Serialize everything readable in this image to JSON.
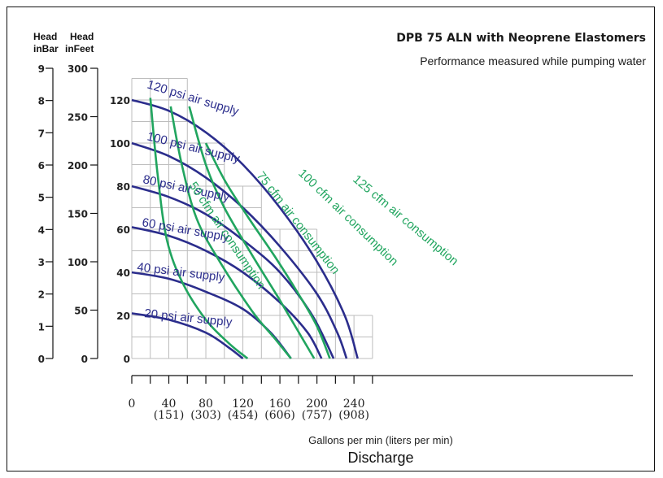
{
  "chart_data": {
    "type": "line",
    "title": "DPB 75 ALN with Neoprene  Elastomers",
    "subtitle": "Performance measured while pumping water",
    "xlabel": "Gallons per min (liters per min)",
    "xlabel2": "Discharge",
    "xlim": [
      0,
      260
    ],
    "ylim_feet": [
      0,
      300
    ],
    "x_ticks": [
      {
        "value": 0,
        "label": "0",
        "sub": ""
      },
      {
        "value": 40,
        "label": "40",
        "sub": "(151)"
      },
      {
        "value": 80,
        "label": "80",
        "sub": "(303)"
      },
      {
        "value": 120,
        "label": "120",
        "sub": "(454)"
      },
      {
        "value": 160,
        "label": "160",
        "sub": "(606)"
      },
      {
        "value": 200,
        "label": "200",
        "sub": "(757)"
      },
      {
        "value": 240,
        "label": "240",
        "sub": "(908)"
      }
    ],
    "psi_ticks": [
      {
        "value": 0,
        "label": "0"
      },
      {
        "value": 20,
        "label": "20"
      },
      {
        "value": 40,
        "label": "40"
      },
      {
        "value": 60,
        "label": "60"
      },
      {
        "value": 80,
        "label": "80"
      },
      {
        "value": 100,
        "label": "100"
      },
      {
        "value": 120,
        "label": "120"
      }
    ],
    "bar_axis": {
      "header": [
        "Head",
        "inBar"
      ],
      "ticks": [
        "0",
        "1",
        "2",
        "3",
        "4",
        "5",
        "6",
        "7",
        "8",
        "9"
      ]
    },
    "feet_axis": {
      "header": [
        "Head",
        "inFeet"
      ],
      "ticks": [
        "0",
        "50",
        "100",
        "150",
        "200",
        "250",
        "300"
      ]
    },
    "colors": {
      "air": "#2b2d8c",
      "cfm": "#21a55f",
      "grid": "#bdbdbd",
      "axis": "#111111",
      "feet_zero": "#8a8a1e"
    },
    "air_series": [
      {
        "name": "120 psi air supply",
        "points": [
          [
            0,
            120
          ],
          [
            40,
            115
          ],
          [
            80,
            105
          ],
          [
            120,
            90
          ],
          [
            160,
            70
          ],
          [
            200,
            45
          ],
          [
            230,
            20
          ],
          [
            244,
            0
          ]
        ]
      },
      {
        "name": "100 psi air supply",
        "points": [
          [
            0,
            100
          ],
          [
            40,
            94
          ],
          [
            80,
            84
          ],
          [
            120,
            70
          ],
          [
            160,
            52
          ],
          [
            200,
            30
          ],
          [
            222,
            12
          ],
          [
            232,
            0
          ]
        ]
      },
      {
        "name": "80 psi air supply",
        "points": [
          [
            0,
            80
          ],
          [
            40,
            75
          ],
          [
            80,
            67
          ],
          [
            120,
            55
          ],
          [
            160,
            40
          ],
          [
            195,
            20
          ],
          [
            218,
            0
          ]
        ]
      },
      {
        "name": "60 psi air supply",
        "points": [
          [
            0,
            61
          ],
          [
            40,
            57
          ],
          [
            80,
            50
          ],
          [
            120,
            40
          ],
          [
            160,
            26
          ],
          [
            190,
            12
          ],
          [
            205,
            0
          ]
        ]
      },
      {
        "name": "40 psi air supply",
        "points": [
          [
            0,
            40
          ],
          [
            40,
            37
          ],
          [
            80,
            31
          ],
          [
            120,
            23
          ],
          [
            150,
            12
          ],
          [
            172,
            0
          ]
        ]
      },
      {
        "name": "20 psi air supply",
        "points": [
          [
            0,
            21
          ],
          [
            40,
            18
          ],
          [
            80,
            12
          ],
          [
            105,
            5
          ],
          [
            120,
            0
          ]
        ]
      }
    ],
    "cfm_series": [
      {
        "name": "50 cfm air consumption",
        "points": [
          [
            20,
            121
          ],
          [
            28,
            85
          ],
          [
            38,
            55
          ],
          [
            55,
            35
          ],
          [
            80,
            18
          ],
          [
            105,
            7
          ],
          [
            125,
            0
          ]
        ]
      },
      {
        "name": "75 cfm air consumption",
        "points": [
          [
            42,
            117
          ],
          [
            54,
            90
          ],
          [
            70,
            65
          ],
          [
            95,
            45
          ],
          [
            130,
            22
          ],
          [
            155,
            9
          ],
          [
            172,
            0
          ]
        ]
      },
      {
        "name": "100 cfm air consumption",
        "points": [
          [
            62,
            117
          ],
          [
            80,
            90
          ],
          [
            100,
            70
          ],
          [
            130,
            48
          ],
          [
            160,
            27
          ],
          [
            182,
            11
          ],
          [
            197,
            0
          ]
        ]
      },
      {
        "name": "125 cfm air consumption",
        "points": [
          [
            80,
            100
          ],
          [
            100,
            83
          ],
          [
            125,
            66
          ],
          [
            155,
            47
          ],
          [
            180,
            30
          ],
          [
            200,
            15
          ],
          [
            214,
            0
          ]
        ]
      }
    ]
  }
}
